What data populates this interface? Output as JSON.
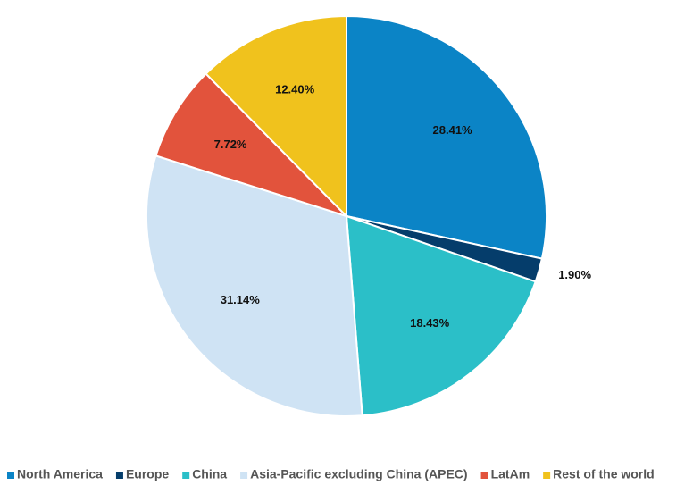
{
  "chart_data": {
    "type": "pie",
    "categories": [
      "North America",
      "Europe",
      "China",
      "Asia-Pacific excluding China (APEC)",
      "LatAm",
      "Rest of the world"
    ],
    "values": [
      28.41,
      1.9,
      18.43,
      31.14,
      7.72,
      12.4
    ],
    "value_labels": [
      "28.41%",
      "1.90%",
      "18.43%",
      "31.14%",
      "7.72%",
      "12.40%"
    ],
    "colors": [
      "#0b84c6",
      "#053d6b",
      "#2bbfc8",
      "#cfe3f4",
      "#e2533c",
      "#f0c21d"
    ],
    "legend": "bottom"
  }
}
